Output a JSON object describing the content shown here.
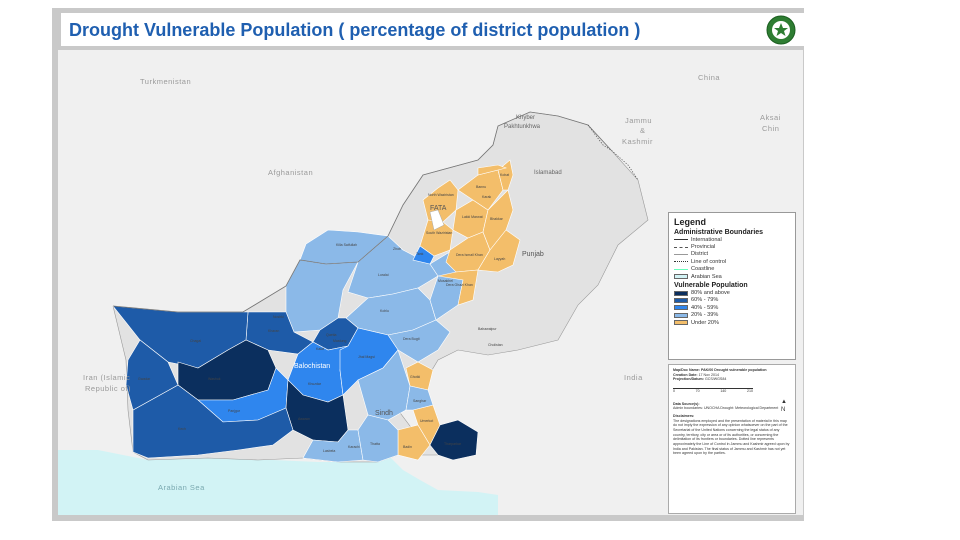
{
  "title": "Drought Vulnerable Population ( percentage of district population )",
  "map": {
    "country_labels": {
      "turkmenistan": "Turkmenistan",
      "afghanistan": "Afghanistan",
      "china": "China",
      "jammu": "Jammu",
      "amp": "&",
      "kashmir": "Kashmir",
      "aksai1": "Aksai",
      "aksai2": "Chin",
      "iran1": "Iran (Islamic",
      "iran2": "Republic of)",
      "india": "India",
      "arabian_sea": "Arabian Sea"
    },
    "region_labels": {
      "kp1": "Khyber",
      "kp2": "Pakhtunkhwa",
      "fata": "FATA",
      "punjab": "Punjab",
      "balochistan": "Balochistan",
      "sindh": "Sindh",
      "islamabad": "Islamabad"
    },
    "district_labels": [
      {
        "id": "d-north-waziristan",
        "text": "North Waziristan"
      },
      {
        "id": "d-south-waziristan",
        "text": "South Waziristan"
      },
      {
        "id": "d-lakki",
        "text": "Lakki Marwat"
      },
      {
        "id": "d-dera-ismail",
        "text": "Dera Ismail Khan"
      },
      {
        "id": "d-bhakkar",
        "text": "Bhakkar"
      },
      {
        "id": "d-layyah",
        "text": "Layyah"
      },
      {
        "id": "d-muzaffargarh",
        "text": "Dera Ghazi Khan"
      },
      {
        "id": "d-chagai",
        "text": "Chagai"
      },
      {
        "id": "d-kharan",
        "text": "Kharan"
      },
      {
        "id": "d-washuk",
        "text": "Washuk"
      },
      {
        "id": "d-panjgur",
        "text": "Panjgur"
      },
      {
        "id": "d-awaran",
        "text": "Awaran"
      },
      {
        "id": "d-kech",
        "text": "Kech"
      },
      {
        "id": "d-gwadar",
        "text": "Gwadar"
      },
      {
        "id": "d-lasbela",
        "text": "Lasbela"
      },
      {
        "id": "d-khuzdar",
        "text": "Khuzdar"
      },
      {
        "id": "d-kalat",
        "text": "Kalat"
      },
      {
        "id": "d-quetta",
        "text": "Quetta"
      },
      {
        "id": "d-mastung",
        "text": "Mastung"
      },
      {
        "id": "d-noshki",
        "text": "Noshki"
      },
      {
        "id": "d-kohlu",
        "text": "Kohlu"
      },
      {
        "id": "d-dera-bugti",
        "text": "Dera Bugti"
      },
      {
        "id": "d-zhob",
        "text": "Zhob"
      },
      {
        "id": "d-musakhel",
        "text": "Musakhel"
      },
      {
        "id": "d-loralai",
        "text": "Loralai"
      },
      {
        "id": "d-killa",
        "text": "Killa Saifullah"
      },
      {
        "id": "d-bahawalpur",
        "text": "Bahawalpur"
      },
      {
        "id": "d-cholistan",
        "text": "Cholistan"
      },
      {
        "id": "d-umerkot",
        "text": "Umerkot"
      },
      {
        "id": "d-tharparkar",
        "text": "Tharparkar"
      },
      {
        "id": "d-badin",
        "text": "Badin"
      },
      {
        "id": "d-thatta",
        "text": "Thatta"
      },
      {
        "id": "d-sanghar",
        "text": "Sanghar"
      },
      {
        "id": "d-ghotki",
        "text": "Ghotki"
      },
      {
        "id": "d-karachi",
        "text": "Karachi"
      },
      {
        "id": "d-bannu",
        "text": "Bannu"
      },
      {
        "id": "d-karak",
        "text": "Karak"
      },
      {
        "id": "d-kohat",
        "text": "Kohat"
      },
      {
        "id": "d-tank",
        "text": "Tank"
      },
      {
        "id": "d-jhal",
        "text": "Jhal Magsi"
      }
    ]
  },
  "legend": {
    "title": "Legend",
    "admin_title": "Administrative Boundaries",
    "admin_items": [
      "International",
      "Provincial",
      "District",
      "Line of control",
      "Coastline"
    ],
    "sea_label": "Arabian Sea",
    "vuln_title": "Vulnerable Population",
    "classes": [
      {
        "label": "80% and above",
        "color": "#0b2f5e"
      },
      {
        "label": "60% - 79%",
        "color": "#1e5ba8"
      },
      {
        "label": "40% - 59%",
        "color": "#2f86ee"
      },
      {
        "label": "20% - 39%",
        "color": "#8bb9e8"
      },
      {
        "label": "Under 20%",
        "color": "#f3be6a"
      }
    ]
  },
  "info": {
    "map_doc": "Map/Doc Name: PAK/00 Drought vulnerable population",
    "creation_label": "Creation Date:",
    "creation_date": "17 Nov 2014",
    "projection_label": "Projection/Datum:",
    "projection": "GCS/WGS84",
    "scale": [
      "0",
      "70",
      "140",
      "210"
    ],
    "north": "N",
    "data_source_head": "Data Source(s):",
    "data_source": "Admin boundaries: UNOCHA Drought: Meteorological Department",
    "disclaimer_head": "Disclaimers:",
    "disclaimer": "The designations employed and the presentation of material in this map do not imply the expression of any opinion whatsoever on the part of the Secretariat of the United Nations concerning the legal status of any country, territory, city or area or of its authorities, or concerning the delimitation of its frontiers or boundaries. Dotted line represents approximately the Line of Control in Jammu and Kashmir agreed upon by India and Pakistan. The final status of Jammu and Kashmir has not yet been agreed upon by the parties."
  },
  "colors": {
    "title": "#1f5fb0",
    "frame": "#c9c9c9",
    "land_other": "#f0f0f0",
    "land_pakistan": "#e2e2e2",
    "sea": "#d2f3f5"
  }
}
